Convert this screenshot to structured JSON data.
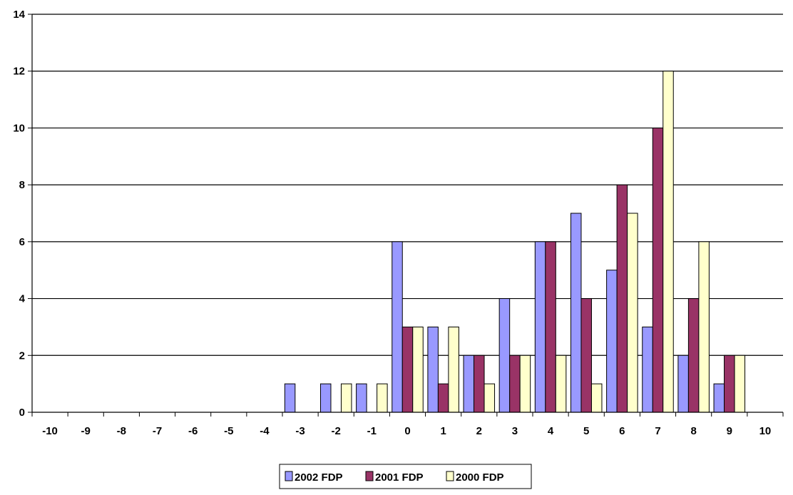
{
  "chart_data": {
    "type": "bar",
    "categories": [
      "-10",
      "-9",
      "-8",
      "-7",
      "-6",
      "-5",
      "-4",
      "-3",
      "-2",
      "-1",
      "0",
      "1",
      "2",
      "3",
      "4",
      "5",
      "6",
      "7",
      "8",
      "9",
      "10"
    ],
    "series": [
      {
        "name": "2002 FDP",
        "color": "#9999ff",
        "values": [
          0,
          0,
          0,
          0,
          0,
          0,
          0,
          1,
          1,
          1,
          6,
          3,
          2,
          4,
          6,
          7,
          5,
          3,
          2,
          1,
          0
        ]
      },
      {
        "name": "2001 FDP",
        "color": "#993366",
        "values": [
          0,
          0,
          0,
          0,
          0,
          0,
          0,
          0,
          0,
          0,
          3,
          1,
          2,
          2,
          6,
          4,
          8,
          10,
          4,
          2,
          0
        ]
      },
      {
        "name": "2000 FDP",
        "color": "#ffffcc",
        "values": [
          0,
          0,
          0,
          0,
          0,
          0,
          0,
          0,
          1,
          1,
          3,
          3,
          1,
          2,
          2,
          1,
          7,
          12,
          6,
          2,
          0
        ]
      }
    ],
    "ylim": [
      0,
      14
    ],
    "yticks": [
      "0",
      "2",
      "4",
      "6",
      "8",
      "10",
      "12",
      "14"
    ],
    "grid": true,
    "legend_position": "bottom"
  }
}
